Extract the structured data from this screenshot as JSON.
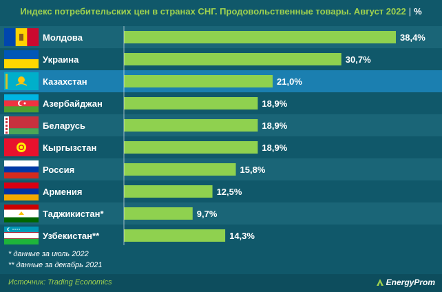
{
  "title": "Индекс потребительских цен в странах СНГ. Продовольственные товары. Август 2022",
  "title_unit": "%",
  "chart_data": {
    "type": "bar",
    "orientation": "horizontal",
    "categories": [
      "Молдова",
      "Украина",
      "Казахстан",
      "Азербайджан",
      "Беларусь",
      "Кыргызстан",
      "Россия",
      "Армения",
      "Таджикистан*",
      "Узбекистан**"
    ],
    "values": [
      38.4,
      30.7,
      21.0,
      18.9,
      18.9,
      18.9,
      15.8,
      12.5,
      9.7,
      14.3
    ],
    "value_labels": [
      "38,4%",
      "30,7%",
      "21,0%",
      "18,9%",
      "18,9%",
      "18,9%",
      "15,8%",
      "12,5%",
      "9,7%",
      "14,3%"
    ],
    "highlight_category": "Казахстан",
    "xlim": [
      0,
      40
    ],
    "title": "Индекс потребительских цен в странах СНГ. Продовольственные товары. Август 2022",
    "xlabel": "",
    "ylabel": "",
    "flags": [
      "moldova-flag",
      "ukraine-flag",
      "kazakhstan-flag",
      "azerbaijan-flag",
      "belarus-flag",
      "kyrgyzstan-flag",
      "russia-flag",
      "armenia-flag",
      "tajikistan-flag",
      "uzbekistan-flag"
    ]
  },
  "notes": [
    "* данные за июль 2022",
    "** данные за декабрь 2021"
  ],
  "source": "Источник: Trading Economics",
  "logo": "EnergyProm",
  "colors": {
    "background": "#10586a",
    "row_alt": "#1a6577",
    "row_highlight": "#1b7fb0",
    "bar": "#8fd14f",
    "title": "#9ed14f",
    "text": "#ffffff"
  }
}
